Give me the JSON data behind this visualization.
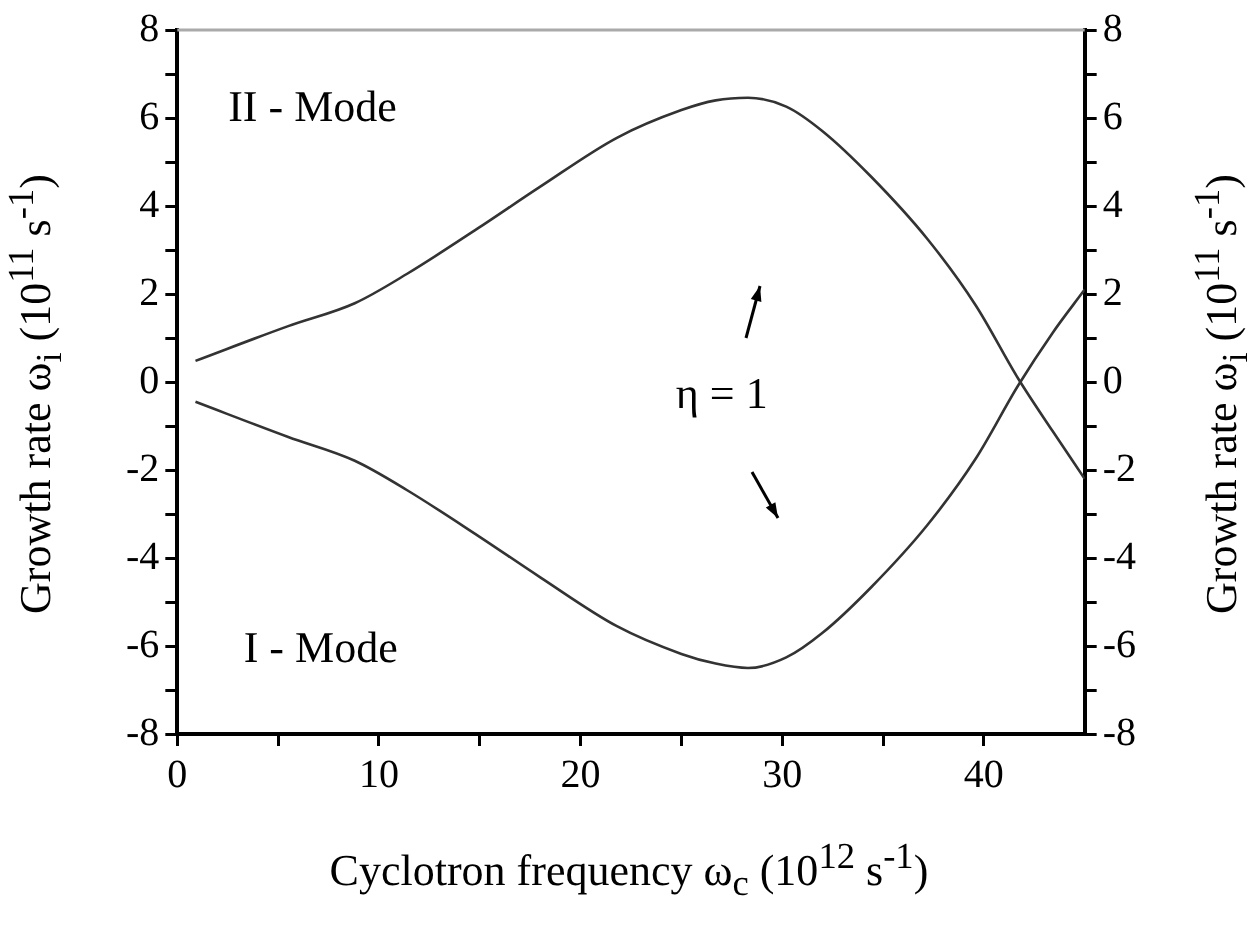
{
  "chart_data": {
    "type": "line",
    "xlabel": "Cyclotron frequency ω$_{c}$ (10$^{12}$ s$^{-1}$)",
    "ylabel": "Growth rate ω$_{i}$ (10$^{11}$ s$^{-1}$)",
    "y2label": "Growth rate ω$_{i}$ (10$^{11}$ s$^{-1}$)",
    "xlim": [
      0,
      45
    ],
    "xticks": [
      0,
      {
        "value": 5,
        "label": null
      },
      10,
      {
        "value": 15,
        "label": null
      },
      20,
      {
        "value": 25,
        "label": null
      },
      30,
      {
        "value": 35,
        "label": null
      },
      40
    ],
    "ylim": [
      -8,
      8
    ],
    "yticks": [
      -8,
      {
        "value": -7,
        "label": null
      },
      -6,
      {
        "value": -5,
        "label": null
      },
      -4,
      {
        "value": -3,
        "label": null
      },
      -2,
      {
        "value": -1,
        "label": null
      },
      0,
      {
        "value": 1,
        "label": null
      },
      2,
      {
        "value": 3,
        "label": null
      },
      4,
      {
        "value": 5,
        "label": null
      },
      6,
      {
        "value": 7,
        "label": null
      },
      8
    ],
    "y2lim": [
      -8,
      8
    ],
    "y2ticks": [
      -8,
      {
        "value": -7,
        "label": null
      },
      -6,
      {
        "value": -5,
        "label": null
      },
      -4,
      {
        "value": -3,
        "label": null
      },
      -2,
      {
        "value": -1,
        "label": null
      },
      0,
      {
        "value": 1,
        "label": null
      },
      2,
      {
        "value": 3,
        "label": null
      },
      4,
      {
        "value": 5,
        "label": null
      },
      6,
      {
        "value": 7,
        "label": null
      },
      8
    ],
    "grid": false,
    "legend": false,
    "marker": "none",
    "line_style": "solid",
    "series": [
      {
        "color": "#333333",
        "x": [
          0.9,
          5.5,
          8.8,
          11.4,
          14.9,
          18.0,
          21.8,
          25.0,
          26.7,
          28.3,
          30.2,
          32.0,
          34.4,
          37.2,
          39.6,
          41.7,
          43.4,
          45
        ],
        "values": [
          0.48,
          1.27,
          1.79,
          2.46,
          3.49,
          4.44,
          5.55,
          6.18,
          6.4,
          6.46,
          6.26,
          5.7,
          4.67,
          3.25,
          1.74,
          0.08,
          -1.11,
          -2.2
        ]
      },
      {
        "color": "#333333",
        "x": [
          0.9,
          5.5,
          8.8,
          11.4,
          14.9,
          18.0,
          21.8,
          25.0,
          26.7,
          28.3,
          30.2,
          32.0,
          34.4,
          37.2,
          39.6,
          41.7,
          43.4,
          45
        ],
        "values": [
          -0.45,
          -1.25,
          -1.79,
          -2.46,
          -3.49,
          -4.44,
          -5.55,
          -6.18,
          -6.4,
          -6.5,
          -6.26,
          -5.7,
          -4.67,
          -3.25,
          -1.74,
          -0.08,
          1.11,
          2.1
        ]
      }
    ],
    "annotations": [
      "II - Mode",
      "I - Mode",
      "η = 1"
    ]
  }
}
